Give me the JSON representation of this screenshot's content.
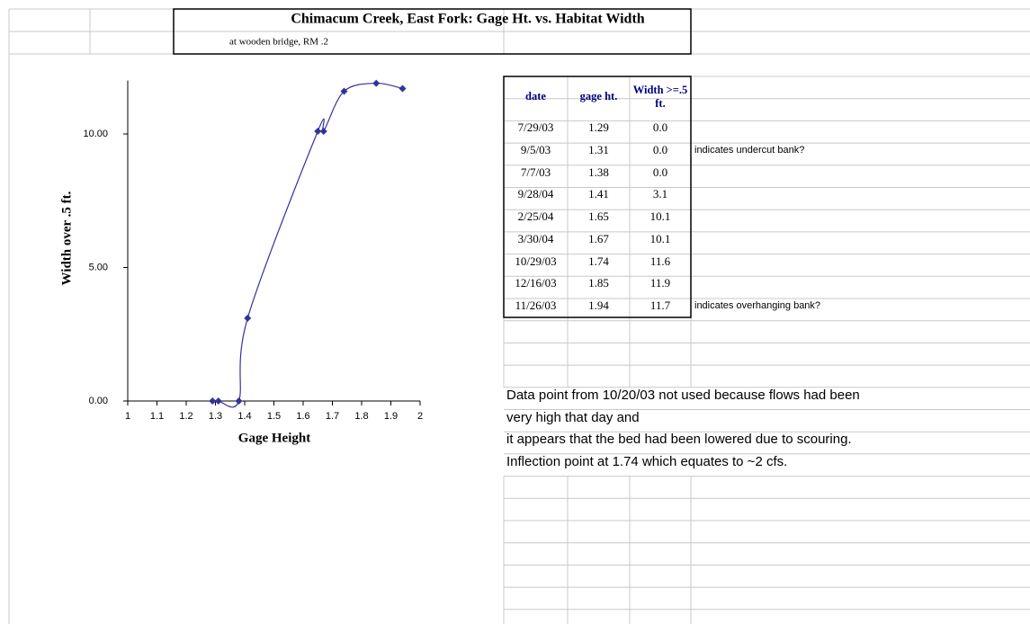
{
  "header": {
    "title": "Chimacum Creek, East Fork: Gage Ht. vs. Habitat Width",
    "subtitle": "at wooden bridge, RM .2"
  },
  "chart_data": {
    "type": "line",
    "x_label": "Gage Height",
    "y_label": "Width over .5 ft.",
    "x": [
      1.29,
      1.31,
      1.38,
      1.41,
      1.65,
      1.67,
      1.74,
      1.85,
      1.94
    ],
    "values": [
      0,
      0,
      0,
      3.1,
      10.1,
      10.1,
      11.6,
      11.9,
      11.7
    ],
    "color": "#333399",
    "smooth": true,
    "marker": "diamond",
    "xlim": [
      1,
      2
    ],
    "xticks": [
      1,
      1.1,
      1.2,
      1.3,
      1.4,
      1.5,
      1.6,
      1.7,
      1.8,
      1.9,
      2
    ],
    "ylim": [
      0,
      12
    ],
    "yticks": [
      {
        "value": 0,
        "label": "0.00"
      },
      {
        "value": 5,
        "label": "5.00"
      },
      {
        "value": 10,
        "label": "10.00"
      }
    ]
  },
  "table": {
    "header": [
      "date",
      "gage ht.",
      "Width >=.5 ft."
    ],
    "rows": [
      {
        "date": "7/29/03",
        "gage_ht": "1.29",
        "width": "0.0"
      },
      {
        "date": "9/5/03",
        "gage_ht": "1.31",
        "width": "0.0",
        "note": "indicates undercut bank?"
      },
      {
        "date": "7/7/03",
        "gage_ht": "1.38",
        "width": "0.0"
      },
      {
        "date": "9/28/04",
        "gage_ht": "1.41",
        "width": "3.1"
      },
      {
        "date": "2/25/04",
        "gage_ht": "1.65",
        "width": "10.1"
      },
      {
        "date": "3/30/04",
        "gage_ht": "1.67",
        "width": "10.1"
      },
      {
        "date": "10/29/03",
        "gage_ht": "1.74",
        "width": "11.6"
      },
      {
        "date": "12/16/03",
        "gage_ht": "1.85",
        "width": "11.9"
      },
      {
        "date": "11/26/03",
        "gage_ht": "1.94",
        "width": "11.7",
        "note": "indicates overhanging bank?"
      }
    ]
  },
  "notes": [
    "Data point from 10/20/03 not used because flows had been",
    "very high that day and",
    "it appears that the bed had been lowered due to scouring.",
    "Inflection point at 1.74 which equates to ~2 cfs."
  ]
}
